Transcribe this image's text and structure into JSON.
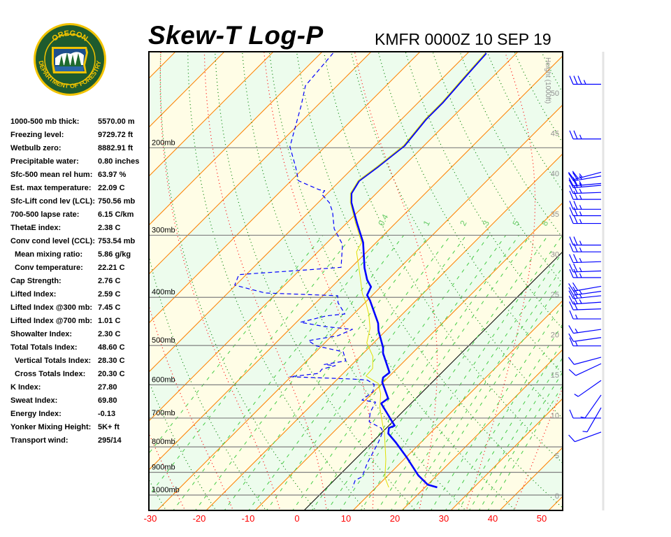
{
  "header": {
    "title": "Skew-T Log-P",
    "station_time": "KMFR 0000Z 10 SEP 19"
  },
  "logo": {
    "text_top": "OREGON",
    "text_bottom": "DEPARTMENT OF FORESTRY",
    "colors": {
      "ring": "#f2c300",
      "field": "#1e5b2e"
    }
  },
  "stats": [
    {
      "label": "1000-500 mb thick:",
      "value": "5570.00 m"
    },
    {
      "label": "Freezing level:",
      "value": "9729.72 ft"
    },
    {
      "label": "Wetbulb zero:",
      "value": "8882.91 ft"
    },
    {
      "label": "Precipitable water:",
      "value": "0.80 inches"
    },
    {
      "label": "Sfc-500 mean rel hum:",
      "value": "63.97 %"
    },
    {
      "label": "Est. max temperature:",
      "value": "22.09 C"
    },
    {
      "label": "Sfc-Lift cond lev (LCL):",
      "value": "750.56 mb"
    },
    {
      "label": "700-500 lapse rate:",
      "value": "6.15 C/km"
    },
    {
      "label": "ThetaE index:",
      "value": "2.38 C"
    },
    {
      "label": "Conv cond level (CCL):",
      "value": "753.54 mb"
    },
    {
      "label": "Mean mixing ratio:",
      "value": "5.86 g/kg",
      "indent": true
    },
    {
      "label": "Conv temperature:",
      "value": "22.21 C",
      "indent": true
    },
    {
      "label": "Cap Strength:",
      "value": "2.76 C"
    },
    {
      "label": "Lifted Index:",
      "value": "2.59 C"
    },
    {
      "label": "Lifted Index @300 mb:",
      "value": "7.45 C"
    },
    {
      "label": "Lifted Index @700 mb:",
      "value": "1.01 C"
    },
    {
      "label": "Showalter Index:",
      "value": "2.30 C"
    },
    {
      "label": "Total Totals Index:",
      "value": "48.60 C"
    },
    {
      "label": "Vertical Totals Index:",
      "value": "28.30 C",
      "indent": true
    },
    {
      "label": "Cross Totals Index:",
      "value": "20.30 C",
      "indent": true
    },
    {
      "label": "K Index:",
      "value": "27.80"
    },
    {
      "label": "Sweat Index:",
      "value": "69.80"
    },
    {
      "label": "Energy Index:",
      "value": "-0.13"
    },
    {
      "label": "Yonker Mixing Height:",
      "value": "5K+ ft"
    },
    {
      "label": "Transport wind:",
      "value": "295/14"
    }
  ],
  "chart_data": {
    "type": "skew-t",
    "title": "Skew-T Log-P",
    "subtitle": "KMFR 0000Z 10 SEP 19",
    "x_axis": {
      "unit": "C",
      "ticks": [
        -30,
        -20,
        -10,
        0,
        10,
        20,
        30,
        40,
        50
      ],
      "tick_color": "#ff0000"
    },
    "y_axis": {
      "scale": "log",
      "range_mb": [
        1075,
        128
      ],
      "ticks_mb": [
        200,
        300,
        400,
        500,
        600,
        700,
        800,
        900,
        1000
      ],
      "tick_suffix": "mb"
    },
    "height_axis": {
      "title": "Height (1000ft)",
      "ticks": [
        0,
        5,
        10,
        15,
        20,
        25,
        30,
        35,
        40,
        45,
        50
      ]
    },
    "isotherm_step_c": 10,
    "zero_isotherm_color": "#000000",
    "isotherm_color": "#ff8000",
    "band_colors": [
      "#fffde6",
      "#edfced"
    ],
    "dry_adiabat_color": "#008000",
    "moist_adiabat_color": "#ff0000",
    "mixing_ratio": {
      "color": "#44cc44",
      "labeled": [
        0.4,
        1,
        2,
        3,
        5,
        8
      ],
      "labels": [
        "0.4",
        "1",
        "2",
        "3",
        "5",
        "8"
      ],
      "unlabeled": [
        0.1,
        0.2,
        0.6,
        1.5,
        4,
        6,
        10,
        12,
        14,
        16,
        20,
        24,
        28,
        32,
        36,
        40
      ]
    },
    "series": [
      {
        "key": "temperature",
        "color": "#0000ff",
        "style": "solid-thick",
        "points_p_t": [
          [
            129,
            -56.2
          ],
          [
            143,
            -55.7
          ],
          [
            162,
            -55.0
          ],
          [
            175,
            -55.0
          ],
          [
            198,
            -54.0
          ],
          [
            218,
            -55.1
          ],
          [
            233,
            -56.1
          ],
          [
            247,
            -55.1
          ],
          [
            258,
            -53.2
          ],
          [
            284,
            -47.8
          ],
          [
            310,
            -42.7
          ],
          [
            349,
            -37.2
          ],
          [
            369,
            -34.2
          ],
          [
            381,
            -32.0
          ],
          [
            396,
            -31.1
          ],
          [
            406,
            -29.4
          ],
          [
            451,
            -23.1
          ],
          [
            467,
            -21.5
          ],
          [
            505,
            -17.1
          ],
          [
            518,
            -16.0
          ],
          [
            562,
            -11.2
          ],
          [
            567,
            -10.7
          ],
          [
            580,
            -11.0
          ],
          [
            593,
            -10.2
          ],
          [
            639,
            -5.7
          ],
          [
            654,
            -6.1
          ],
          [
            725,
            1.2
          ],
          [
            733,
            0.5
          ],
          [
            752,
            1.5
          ],
          [
            784,
            4.9
          ],
          [
            837,
            9.9
          ],
          [
            913,
            16.2
          ],
          [
            953,
            20.0
          ],
          [
            965,
            22.5
          ]
        ]
      },
      {
        "key": "dewpoint",
        "color": "#0000ff",
        "style": "dashed",
        "points_p_t": [
          [
            129,
            -87.5
          ],
          [
            139,
            -87.0
          ],
          [
            150,
            -86.5
          ],
          [
            164,
            -83.4
          ],
          [
            199,
            -77.2
          ],
          [
            219,
            -71.8
          ],
          [
            233,
            -68.5
          ],
          [
            243,
            -62.4
          ],
          [
            244,
            -61.1
          ],
          [
            248,
            -61.0
          ],
          [
            258,
            -57.7
          ],
          [
            269,
            -55.2
          ],
          [
            291,
            -51.4
          ],
          [
            313,
            -46.5
          ],
          [
            348,
            -42.1
          ],
          [
            352,
            -48.2
          ],
          [
            360,
            -61.5
          ],
          [
            378,
            -60.2
          ],
          [
            392,
            -52.4
          ],
          [
            397,
            -37.0
          ],
          [
            410,
            -35.5
          ],
          [
            432,
            -31.8
          ],
          [
            436,
            -35.2
          ],
          [
            449,
            -39.2
          ],
          [
            458,
            -33.4
          ],
          [
            464,
            -27.1
          ],
          [
            478,
            -28.8
          ],
          [
            489,
            -33.8
          ],
          [
            501,
            -31.1
          ],
          [
            515,
            -24.4
          ],
          [
            537,
            -22.0
          ],
          [
            546,
            -25.7
          ],
          [
            549,
            -23.2
          ],
          [
            558,
            -25.2
          ],
          [
            569,
            -25.0
          ],
          [
            578,
            -30.2
          ],
          [
            584,
            -17.2
          ],
          [
            587,
            -13.7
          ],
          [
            599,
            -11.4
          ],
          [
            619,
            -10.2
          ],
          [
            644,
            -10.7
          ],
          [
            650,
            -7.5
          ],
          [
            682,
            -6.5
          ],
          [
            712,
            -4.8
          ],
          [
            733,
            -1.1
          ],
          [
            745,
            0.0
          ],
          [
            784,
            1.3
          ],
          [
            864,
            3.3
          ],
          [
            919,
            5.0
          ],
          [
            934,
            4.3
          ],
          [
            965,
            5.2
          ]
        ]
      },
      {
        "key": "wetbulb",
        "color": "#e0e000",
        "style": "thin",
        "points_p_t": [
          [
            129,
            -56.4
          ],
          [
            143,
            -55.9
          ],
          [
            162,
            -55.2
          ],
          [
            175,
            -55.2
          ],
          [
            198,
            -54.2
          ],
          [
            218,
            -55.3
          ],
          [
            233,
            -56.3
          ],
          [
            247,
            -55.3
          ],
          [
            258,
            -53.4
          ],
          [
            284,
            -48.1
          ],
          [
            310,
            -43.0
          ],
          [
            324,
            -42.1
          ],
          [
            357,
            -37.2
          ],
          [
            393,
            -32.4
          ],
          [
            410,
            -29.8
          ],
          [
            433,
            -26.8
          ],
          [
            462,
            -23.7
          ],
          [
            494,
            -21.4
          ],
          [
            526,
            -17.4
          ],
          [
            556,
            -15.0
          ],
          [
            576,
            -14.8
          ],
          [
            596,
            -10.8
          ],
          [
            625,
            -8.2
          ],
          [
            667,
            -5.5
          ],
          [
            721,
            -1.5
          ],
          [
            745,
            0.3
          ],
          [
            848,
            6.3
          ],
          [
            922,
            9.8
          ],
          [
            965,
            12.6
          ]
        ]
      }
    ],
    "winds": {
      "color": "#0000ff",
      "unit": "kt",
      "p_dir_speed": [
        [
          149,
          270,
          35
        ],
        [
          192,
          270,
          25
        ],
        [
          224,
          255,
          25
        ],
        [
          228,
          260,
          25
        ],
        [
          236,
          265,
          25
        ],
        [
          238,
          265,
          25
        ],
        [
          246,
          268,
          25
        ],
        [
          254,
          270,
          25
        ],
        [
          266,
          270,
          25
        ],
        [
          274,
          270,
          25
        ],
        [
          284,
          270,
          25
        ],
        [
          314,
          270,
          25
        ],
        [
          324,
          270,
          25
        ],
        [
          339,
          268,
          25
        ],
        [
          354,
          268,
          25
        ],
        [
          365,
          270,
          25
        ],
        [
          380,
          260,
          20
        ],
        [
          389,
          262,
          25
        ],
        [
          397,
          264,
          25
        ],
        [
          409,
          266,
          25
        ],
        [
          422,
          268,
          20
        ],
        [
          442,
          270,
          15
        ],
        [
          464,
          262,
          15
        ],
        [
          482,
          262,
          10
        ],
        [
          501,
          270,
          15
        ],
        [
          528,
          255,
          10
        ],
        [
          544,
          245,
          10
        ],
        [
          588,
          235,
          5
        ],
        [
          629,
          215,
          5
        ],
        [
          667,
          210,
          5
        ],
        [
          700,
          270,
          10
        ],
        [
          747,
          250,
          10
        ]
      ]
    }
  }
}
